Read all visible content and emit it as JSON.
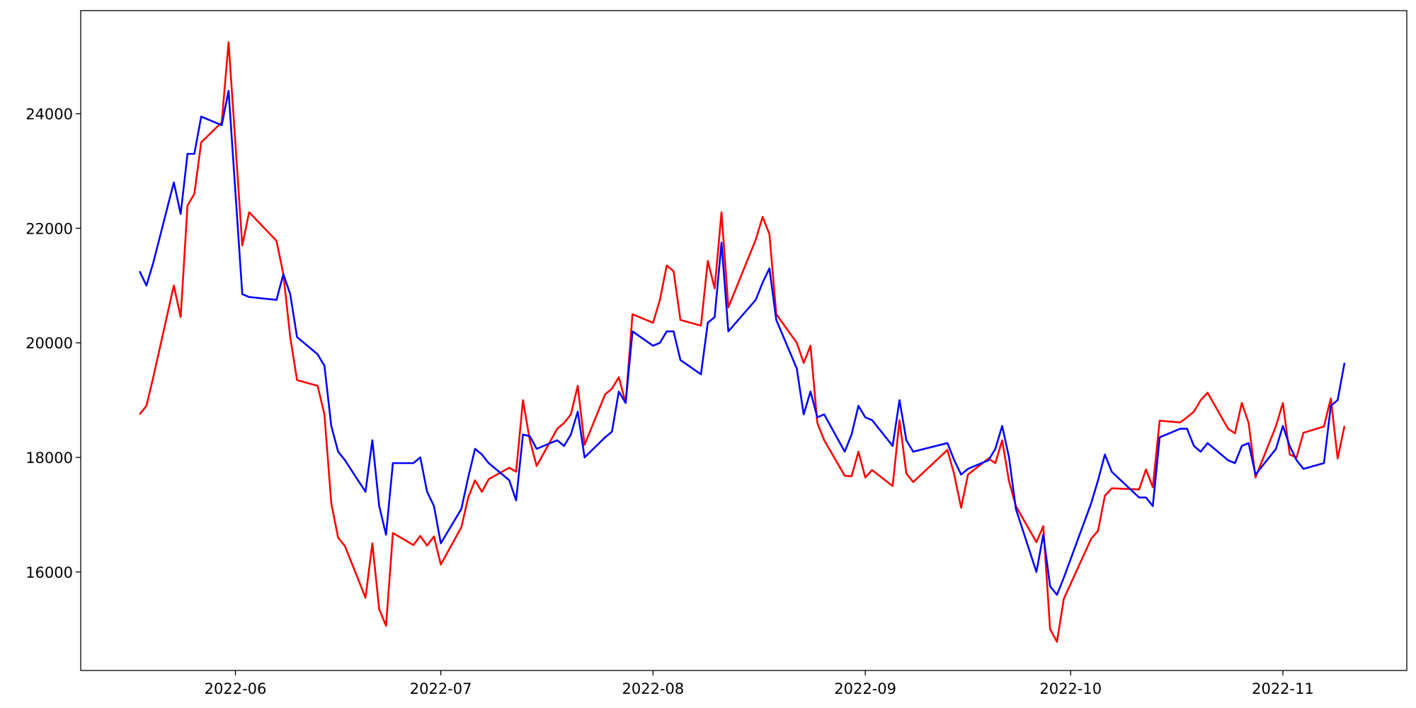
{
  "chart_data": {
    "type": "line",
    "x": [
      -14,
      -13,
      -12,
      -9,
      -8,
      -7,
      -6,
      -5,
      -2,
      -1,
      1,
      2,
      6,
      7,
      8,
      9,
      12,
      13,
      14,
      15,
      16,
      19,
      20,
      21,
      22,
      23,
      26,
      27,
      28,
      29,
      30,
      33,
      34,
      35,
      36,
      37,
      40,
      41,
      42,
      43,
      44,
      47,
      48,
      49,
      50,
      51,
      54,
      55,
      56,
      57,
      58,
      61,
      62,
      63,
      64,
      65,
      68,
      69,
      70,
      71,
      72,
      76,
      77,
      78,
      79,
      82,
      83,
      84,
      85,
      86,
      89,
      90,
      91,
      92,
      93,
      96,
      97,
      98,
      99,
      104,
      105,
      106,
      107,
      110,
      111,
      112,
      113,
      114,
      117,
      118,
      119,
      120,
      121,
      125,
      126,
      127,
      128,
      132,
      133,
      134,
      135,
      138,
      139,
      140,
      141,
      142,
      145,
      146,
      147,
      148,
      149,
      152,
      153,
      154,
      155,
      156,
      159,
      160,
      161,
      162
    ],
    "series": [
      {
        "color": "#ff0000",
        "values": [
          18750,
          18900,
          19400,
          21000,
          20450,
          22400,
          22600,
          23500,
          23850,
          25250,
          21700,
          22280,
          21780,
          21200,
          20100,
          19350,
          19250,
          18750,
          17200,
          16600,
          16450,
          15550,
          16500,
          15350,
          15060,
          16680,
          16470,
          16630,
          16460,
          16620,
          16130,
          16780,
          17300,
          17600,
          17400,
          17620,
          17820,
          17750,
          19000,
          18300,
          17850,
          18500,
          18600,
          18750,
          19250,
          18220,
          19100,
          19200,
          19400,
          18950,
          20500,
          20350,
          20750,
          21350,
          21250,
          20400,
          20300,
          21430,
          20950,
          22280,
          20620,
          21800,
          22200,
          21900,
          20500,
          20000,
          19650,
          19950,
          18600,
          18300,
          17680,
          17670,
          18100,
          17650,
          17780,
          17500,
          18650,
          17720,
          17570,
          18130,
          17700,
          17120,
          17700,
          17980,
          17900,
          18300,
          17580,
          17150,
          16520,
          16800,
          15000,
          14780,
          15530,
          16580,
          16720,
          17330,
          17460,
          17440,
          17790,
          17480,
          18640,
          18610,
          18700,
          18800,
          19000,
          19130,
          18500,
          18420,
          18950,
          18600,
          17650,
          18550,
          18950,
          18050,
          18000,
          18430,
          18540,
          19030,
          17980,
          18550
        ]
      },
      {
        "color": "#0000ff",
        "values": [
          21250,
          21000,
          21400,
          22800,
          22250,
          23300,
          23300,
          23950,
          23800,
          24400,
          20850,
          20800,
          20750,
          21200,
          20850,
          20100,
          19800,
          19600,
          18550,
          18100,
          17950,
          17400,
          18300,
          17150,
          16650,
          17900,
          17900,
          18000,
          17400,
          17150,
          16500,
          17100,
          17650,
          18150,
          18050,
          17900,
          17600,
          17250,
          18400,
          18370,
          18150,
          18300,
          18200,
          18400,
          18800,
          18000,
          18350,
          18450,
          19150,
          18950,
          20200,
          19950,
          20000,
          20200,
          20200,
          19700,
          19450,
          20350,
          20450,
          21750,
          20200,
          20750,
          21050,
          21300,
          20400,
          19550,
          18750,
          19150,
          18700,
          18750,
          18100,
          18400,
          18900,
          18700,
          18650,
          18200,
          19000,
          18300,
          18100,
          18250,
          17950,
          17700,
          17800,
          17950,
          18150,
          18550,
          18000,
          17100,
          16000,
          16650,
          15750,
          15600,
          15900,
          17200,
          17600,
          18050,
          17750,
          17300,
          17300,
          17150,
          18350,
          18500,
          18500,
          18200,
          18100,
          18250,
          17950,
          17900,
          18200,
          18250,
          17700,
          18150,
          18550,
          18200,
          17950,
          17800,
          17900,
          18900,
          19000,
          19650
        ]
      }
    ],
    "xlim": [
      -22.6,
      171.1
    ],
    "xticks": [
      {
        "value": 0,
        "label": "2022-06"
      },
      {
        "value": 30,
        "label": "2022-07"
      },
      {
        "value": 61,
        "label": "2022-08"
      },
      {
        "value": 92,
        "label": "2022-09"
      },
      {
        "value": 122,
        "label": "2022-10"
      },
      {
        "value": 153,
        "label": "2022-11"
      }
    ],
    "ylim": [
      14280,
      25800
    ],
    "yticks": [
      16000,
      18000,
      20000,
      22000,
      24000
    ]
  }
}
